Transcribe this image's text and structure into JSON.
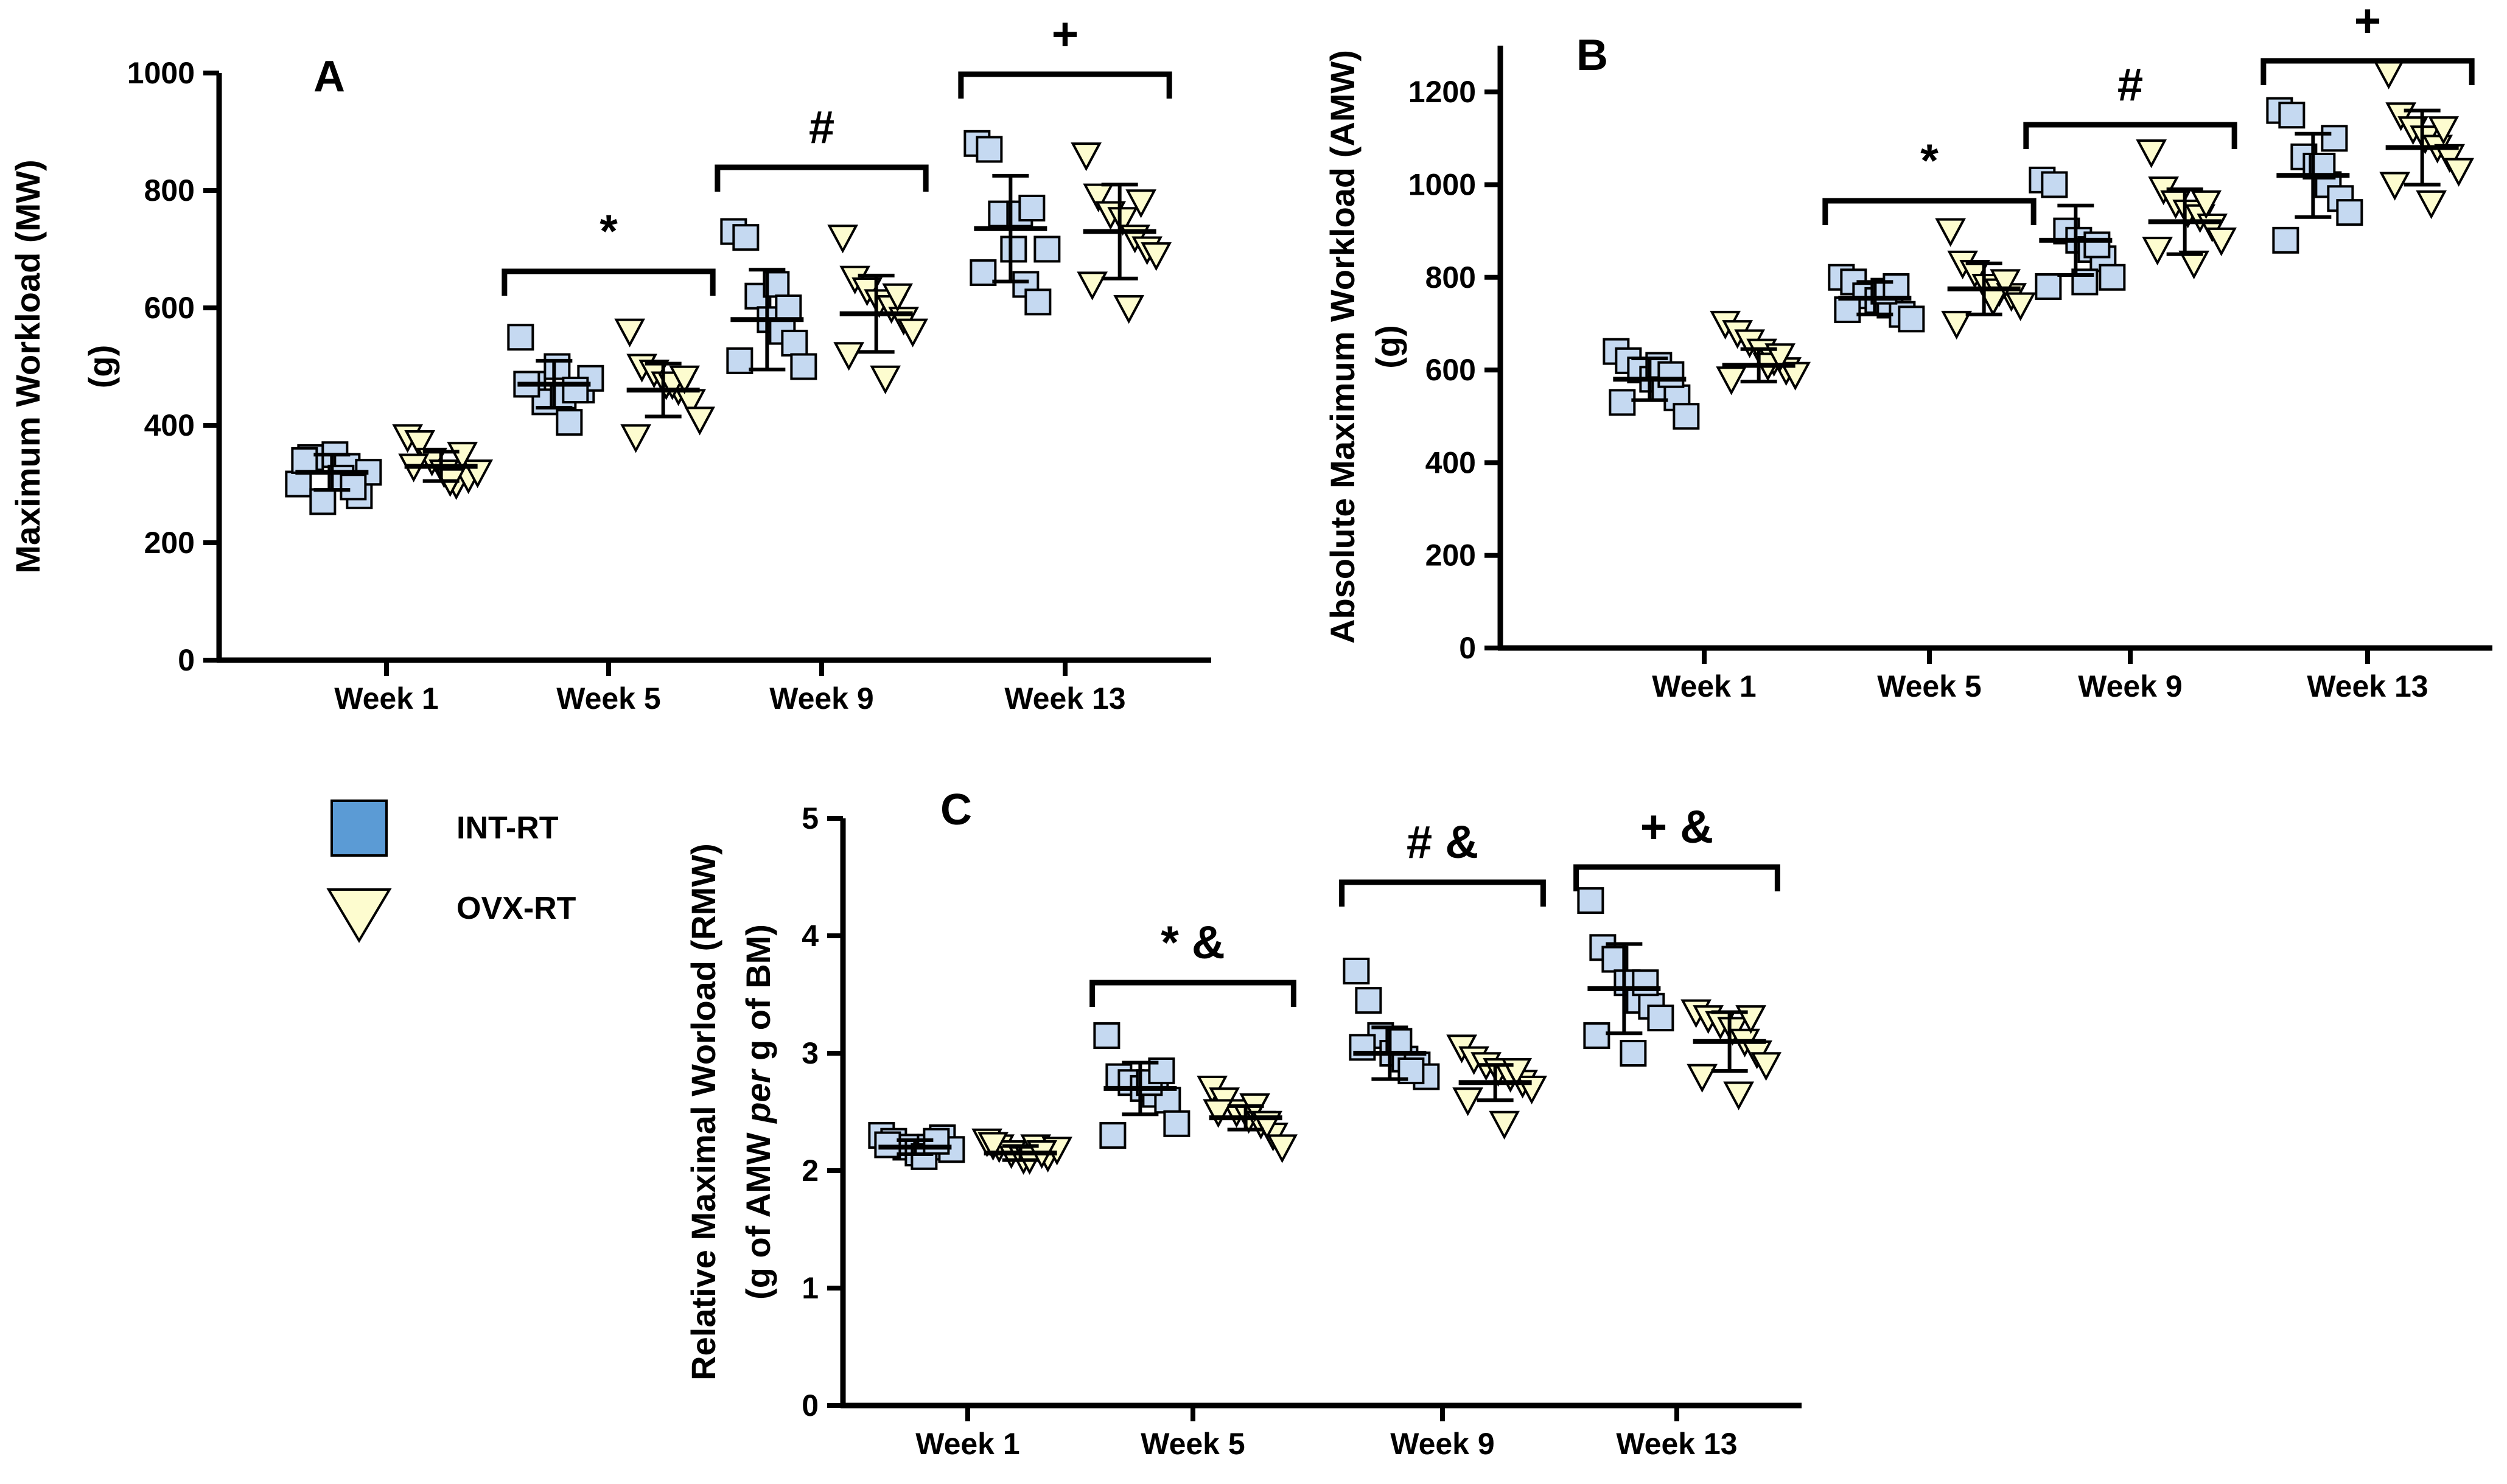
{
  "colors": {
    "int_rt": "#c5d9f1",
    "int_rt_legend": "#5b9bd5",
    "ovx_rt": "#fdfccf",
    "axis": "#000000"
  },
  "legend": {
    "items": [
      {
        "label": "INT-RT",
        "marker": "square"
      },
      {
        "label": "OVX-RT",
        "marker": "triangle-down"
      }
    ]
  },
  "chart_data": [
    {
      "type": "scatter",
      "panel": "A",
      "ylabel": "Maximum Workload (MW)",
      "ylabel2": "(g)",
      "ylim": [
        0,
        1000
      ],
      "yticks": [
        0,
        200,
        400,
        600,
        800,
        1000
      ],
      "categories": [
        "Week 1",
        "Week 5",
        "Week 9",
        "Week 13"
      ],
      "series": [
        {
          "name": "INT-RT",
          "points": [
            [
              300,
              345,
              270,
              350,
              330,
              280,
              320,
              340,
              310,
              295
            ],
            [
              550,
              470,
              440,
              500,
              405,
              460,
              480,
              470,
              450,
              460
            ],
            [
              730,
              720,
              620,
              580,
              560,
              540,
              500,
              510,
              640,
              600
            ],
            [
              880,
              870,
              760,
              700,
              640,
              610,
              700,
              660,
              760,
              770
            ]
          ],
          "mean": [
            320,
            470,
            580,
            735
          ],
          "sd": [
            30,
            40,
            85,
            90
          ]
        },
        {
          "name": "OVX-RT",
          "points": [
            [
              380,
              370,
              340,
              320,
              300,
              310,
              320,
              330,
              305,
              350
            ],
            [
              560,
              500,
              490,
              470,
              460,
              440,
              410,
              380,
              470,
              480
            ],
            [
              720,
              650,
              630,
              610,
              600,
              580,
              560,
              520,
              480,
              620
            ],
            [
              860,
              790,
              760,
              750,
              720,
              700,
              690,
              640,
              600,
              780
            ]
          ],
          "mean": [
            330,
            460,
            590,
            730
          ],
          "sd": [
            25,
            45,
            65,
            80
          ]
        }
      ],
      "significance": [
        {
          "category": "Week 5",
          "label": "*"
        },
        {
          "category": "Week 9",
          "label": "#"
        },
        {
          "category": "Week 13",
          "label": "+"
        }
      ]
    },
    {
      "type": "scatter",
      "panel": "B",
      "ylabel": "Absolute Maximum Workload (AMW)",
      "ylabel2": "(g)",
      "ylim": [
        0,
        1300
      ],
      "yticks": [
        0,
        200,
        400,
        600,
        800,
        1000,
        1200
      ],
      "categories": [
        "Week 1",
        "Week 5",
        "Week 9",
        "Week 13"
      ],
      "series": [
        {
          "name": "INT-RT",
          "points": [
            [
              640,
              620,
              600,
              580,
              560,
              540,
              500,
              530,
              610,
              590
            ],
            [
              800,
              790,
              760,
              750,
              740,
              720,
              710,
              730,
              770,
              780
            ],
            [
              1010,
              1000,
              900,
              880,
              860,
              840,
              800,
              780,
              790,
              870
            ],
            [
              1160,
              1150,
              1060,
              1040,
              1000,
              970,
              940,
              880,
              1040,
              1100
            ]
          ],
          "mean": [
            580,
            755,
            880,
            1020
          ],
          "sd": [
            45,
            35,
            75,
            90
          ]
        },
        {
          "name": "OVX-RT",
          "points": [
            [
              700,
              680,
              660,
              640,
              620,
              600,
              590,
              580,
              610,
              630
            ],
            [
              900,
              830,
              810,
              780,
              770,
              760,
              740,
              700,
              750,
              790
            ],
            [
              1070,
              990,
              960,
              940,
              930,
              910,
              880,
              860,
              830,
              960
            ],
            [
              1240,
              1150,
              1120,
              1100,
              1080,
              1060,
              1030,
              1000,
              960,
              1120
            ]
          ],
          "mean": [
            610,
            775,
            920,
            1080
          ],
          "sd": [
            35,
            55,
            70,
            80
          ]
        }
      ],
      "significance": [
        {
          "category": "Week 5",
          "label": "*"
        },
        {
          "category": "Week 9",
          "label": "#"
        },
        {
          "category": "Week 13",
          "label": "+"
        }
      ]
    },
    {
      "type": "scatter",
      "panel": "C",
      "ylabel": "Relative Maximal Worload (RMW)",
      "ylabel2_parts": [
        "(g of AMW ",
        "per",
        " g of BM)"
      ],
      "ylim": [
        0,
        5
      ],
      "yticks": [
        0,
        1,
        2,
        3,
        4,
        5
      ],
      "categories": [
        "Week 1",
        "Week 5",
        "Week 9",
        "Week 13"
      ],
      "series": [
        {
          "name": "INT-RT",
          "points": [
            [
              2.3,
              2.25,
              2.2,
              2.15,
              2.2,
              2.28,
              2.18,
              2.22,
              2.12,
              2.25
            ],
            [
              3.15,
              2.8,
              2.75,
              2.7,
              2.65,
              2.6,
              2.4,
              2.3,
              2.75,
              2.85
            ],
            [
              3.7,
              3.45,
              3.15,
              3.0,
              2.95,
              2.9,
              2.8,
              3.05,
              3.1,
              2.85
            ],
            [
              4.3,
              3.9,
              3.8,
              3.6,
              3.45,
              3.4,
              3.3,
              3.15,
              3.0,
              3.6
            ]
          ],
          "mean": [
            2.2,
            2.7,
            3.0,
            3.55
          ],
          "sd": [
            0.06,
            0.22,
            0.22,
            0.38
          ]
        },
        {
          "name": "OVX-RT",
          "points": [
            [
              2.25,
              2.2,
              2.15,
              2.1,
              2.2,
              2.12,
              2.18,
              2.22,
              2.1,
              2.15
            ],
            [
              2.7,
              2.6,
              2.5,
              2.45,
              2.4,
              2.3,
              2.2,
              2.5,
              2.55,
              2.4
            ],
            [
              3.05,
              2.95,
              2.9,
              2.85,
              2.8,
              2.75,
              2.7,
              2.6,
              2.4,
              2.85
            ],
            [
              3.35,
              3.3,
              3.25,
              3.2,
              3.1,
              3.0,
              2.9,
              2.8,
              2.65,
              3.3
            ]
          ],
          "mean": [
            2.15,
            2.45,
            2.75,
            3.1
          ],
          "sd": [
            0.06,
            0.1,
            0.15,
            0.25
          ]
        }
      ],
      "significance": [
        {
          "category": "Week 5",
          "label": "* &"
        },
        {
          "category": "Week 9",
          "label": "# &"
        },
        {
          "category": "Week 13",
          "label": "+ &"
        }
      ]
    }
  ]
}
